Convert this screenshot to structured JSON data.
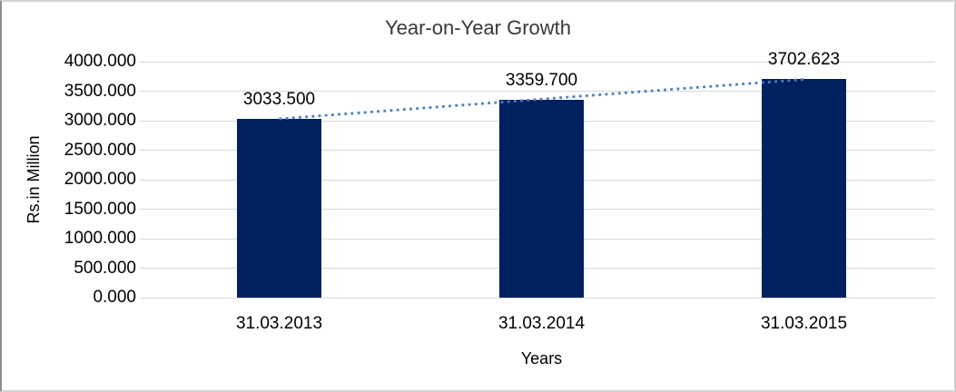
{
  "chart_data": {
    "type": "bar",
    "title": "Year-on-Year Growth",
    "xlabel": "Years",
    "ylabel": "Rs.in Million",
    "categories": [
      "31.03.2013",
      "31.03.2014",
      "31.03.2015"
    ],
    "values": [
      3033.5,
      3359.7,
      3702.623
    ],
    "data_labels": [
      "3033.500",
      "3359.700",
      "3702.623"
    ],
    "ylim": [
      0,
      4000
    ],
    "ytick_step": 500,
    "ytick_labels": [
      "0.000",
      "500.000",
      "1000.000",
      "1500.000",
      "2000.000",
      "2500.000",
      "3000.000",
      "3500.000",
      "4000.000"
    ],
    "grid": true,
    "legend": "none",
    "trendline": {
      "type": "linear",
      "style": "dotted"
    },
    "colors": {
      "bar": "#002060",
      "trendline": "#4a7ec0",
      "gridline": "#d9d9d9",
      "text": "#000000",
      "title": "#383838"
    }
  }
}
